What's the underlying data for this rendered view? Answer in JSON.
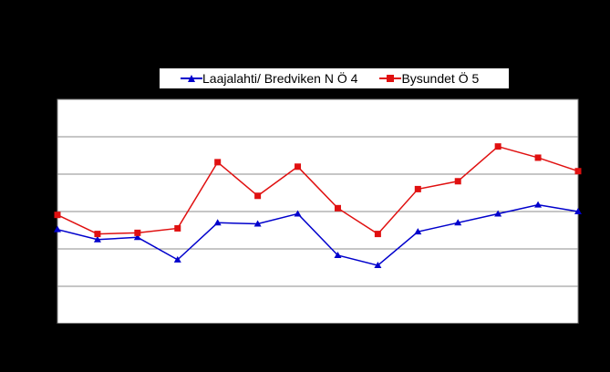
{
  "chart_data": {
    "type": "line",
    "title": "",
    "xlabel": "",
    "ylabel": "",
    "ylim": [
      0,
      100
    ],
    "grid": true,
    "legend_position": "top",
    "x": [
      1,
      2,
      3,
      4,
      5,
      6,
      7,
      8,
      9,
      10,
      11,
      12,
      13,
      14
    ],
    "series": [
      {
        "name": "Laajalahti/ Bredviken N Ö 4",
        "color": "#0000cc",
        "marker": "triangle",
        "values": [
          42,
          37.5,
          38.5,
          28.5,
          45,
          44.5,
          49,
          30.5,
          26,
          41,
          45,
          49,
          53,
          50
        ]
      },
      {
        "name": "Bysundet Ö 5",
        "color": "#e01010",
        "marker": "square",
        "values": [
          48.5,
          40,
          40.5,
          42.5,
          72,
          57,
          70,
          51.5,
          40,
          60,
          63.5,
          79,
          74,
          68
        ]
      }
    ]
  }
}
